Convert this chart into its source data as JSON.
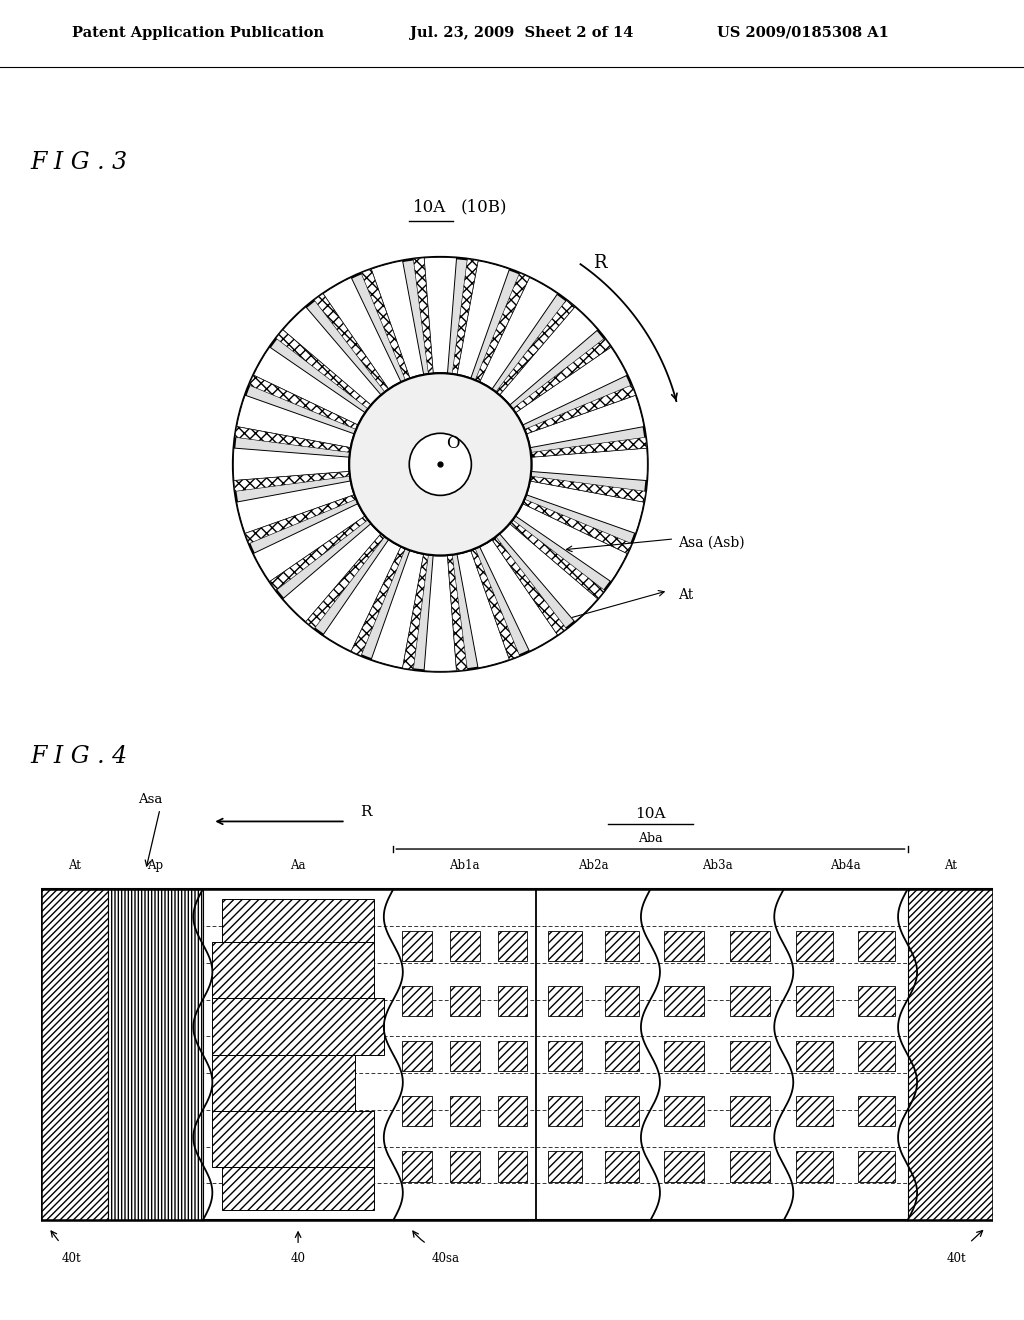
{
  "bg_color": "#ffffff",
  "header_text": "Patent Application Publication",
  "header_date": "Jul. 23, 2009  Sheet 2 of 14",
  "header_patent": "US 2009/0185308 A1",
  "fig3_label": "F I G . 3",
  "fig4_label": "F I G . 4",
  "disc_label_10A": "10A",
  "disc_label_10B": "(10B)",
  "num_spokes": 24,
  "spoke_half_deg": 4.5,
  "hatch_half_deg": 2.0,
  "label_R": "R",
  "label_Asa": "Asa (Asb)",
  "label_At": "At",
  "fig4_labels_top": [
    "At",
    "Ap",
    "Aa",
    "Ab1a",
    "Ab2a",
    "Ab3a",
    "Ab4a",
    "At"
  ],
  "fig4_label_Aba": "Aba",
  "fig4_label_Asa": "Asa",
  "fig4_label_10A": "10A",
  "fig4_label_R": "R",
  "fig4_bottom_labels": [
    "40t",
    "40",
    "40sa",
    "40t"
  ]
}
